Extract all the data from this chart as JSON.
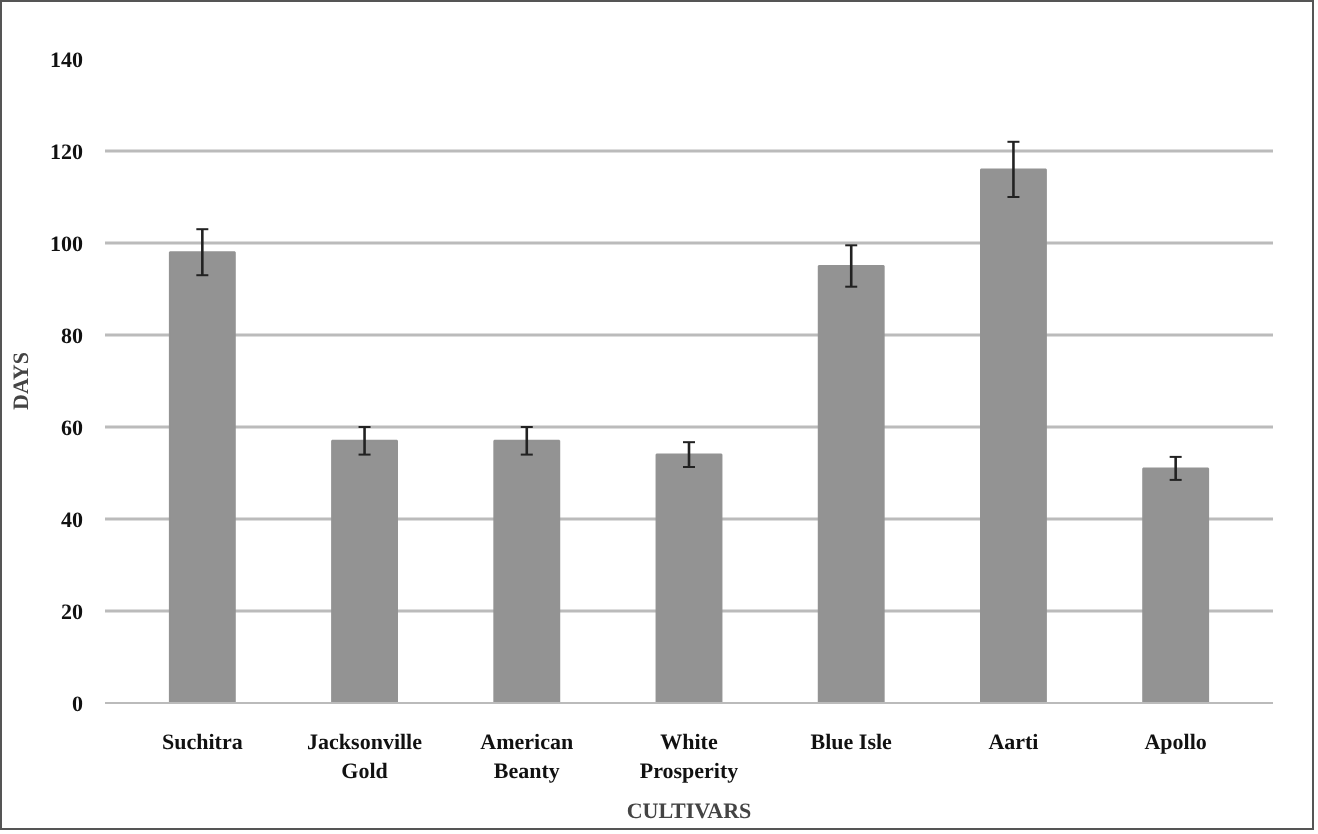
{
  "chart_data": {
    "type": "bar",
    "xlabel": "CULTIVARS",
    "ylabel": "DAYS",
    "categories": [
      "Suchitra",
      "Jacksonville\nGold",
      "American\nBeanty",
      "White\nProsperity",
      "Blue Isle",
      "Aarti",
      "Apollo"
    ],
    "values": [
      98,
      57,
      57,
      54,
      95,
      116,
      51
    ],
    "errors": [
      5,
      3,
      3,
      2.7,
      4.5,
      6,
      2.5
    ],
    "color": "#939393",
    "ylim": [
      0,
      140
    ],
    "yticks": [
      0,
      20,
      40,
      60,
      80,
      100,
      120,
      140
    ],
    "grid": "y"
  }
}
